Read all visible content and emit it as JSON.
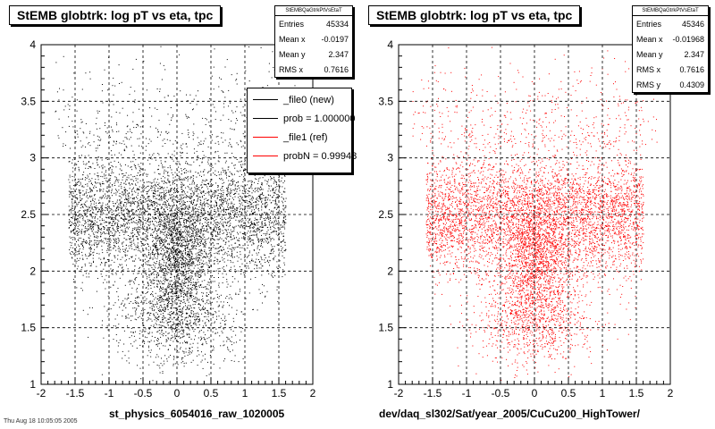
{
  "colors": {
    "new": "#000000",
    "ref": "#ff0000"
  },
  "footer": {
    "text": "Thu Aug 18 10:05:05 2005"
  },
  "legend": {
    "items": [
      {
        "label": "_file0 (new)",
        "color": "#000000"
      },
      {
        "label": "prob = 1.000000",
        "color": "#000000"
      },
      {
        "label": "_file1 (ref)",
        "color": "#ff0000"
      },
      {
        "label": "probN = 0.99948",
        "color": "#ff0000"
      }
    ]
  },
  "panels": [
    {
      "title": "StEMB globtrk: log pT vs eta, tpc",
      "stats": {
        "name": "StEMBQaGtrkPtVsEtaT",
        "rows": [
          {
            "label": "Entries",
            "value": "45334"
          },
          {
            "label": "Mean x",
            "value": "-0.0197"
          },
          {
            "label": "Mean y",
            "value": "2.347"
          },
          {
            "label": "RMS x",
            "value": "0.7616"
          }
        ]
      },
      "xtitle": "st_physics_6054016_raw_1020005"
    },
    {
      "title": "StEMB globtrk: log pT vs eta, tpc",
      "stats": {
        "name": "StEMBQaGtrkPtVsEtaT",
        "rows": [
          {
            "label": "Entries",
            "value": "45346"
          },
          {
            "label": "Mean x",
            "value": "-0.01968"
          },
          {
            "label": "Mean y",
            "value": "2.347"
          },
          {
            "label": "RMS x",
            "value": "0.7616"
          },
          {
            "label": "RMS y",
            "value": "0.4309"
          }
        ]
      },
      "xtitle": "dev/daq_sl302/Sat/year_2005/CuCu200_HighTower/"
    }
  ],
  "chart_data": [
    {
      "type": "scatter",
      "title": "StEMB globtrk: log pT vs eta, tpc",
      "xlim": [
        -2,
        2
      ],
      "ylim": [
        1,
        4
      ],
      "xticks": [
        -2,
        -1.5,
        -1,
        -0.5,
        0,
        0.5,
        1,
        1.5,
        2
      ],
      "yticks": [
        1,
        1.5,
        2,
        2.5,
        3,
        3.5,
        4
      ],
      "grid": true,
      "legend_position": "top-right",
      "color": "#000000",
      "entries": 45334,
      "mean_x": -0.0197,
      "mean_y": 2.347,
      "rms_x": 0.7616
    },
    {
      "type": "scatter",
      "title": "StEMB globtrk: log pT vs eta, tpc",
      "xlim": [
        -2,
        2
      ],
      "ylim": [
        1,
        4
      ],
      "xticks": [
        -2,
        -1.5,
        -1,
        -0.5,
        0,
        0.5,
        1,
        1.5,
        2
      ],
      "yticks": [
        1,
        1.5,
        2,
        2.5,
        3,
        3.5,
        4
      ],
      "grid": true,
      "color": "#ff0000",
      "entries": 45346,
      "mean_x": -0.01968,
      "mean_y": 2.347,
      "rms_x": 0.7616,
      "rms_y": 0.4309
    }
  ]
}
